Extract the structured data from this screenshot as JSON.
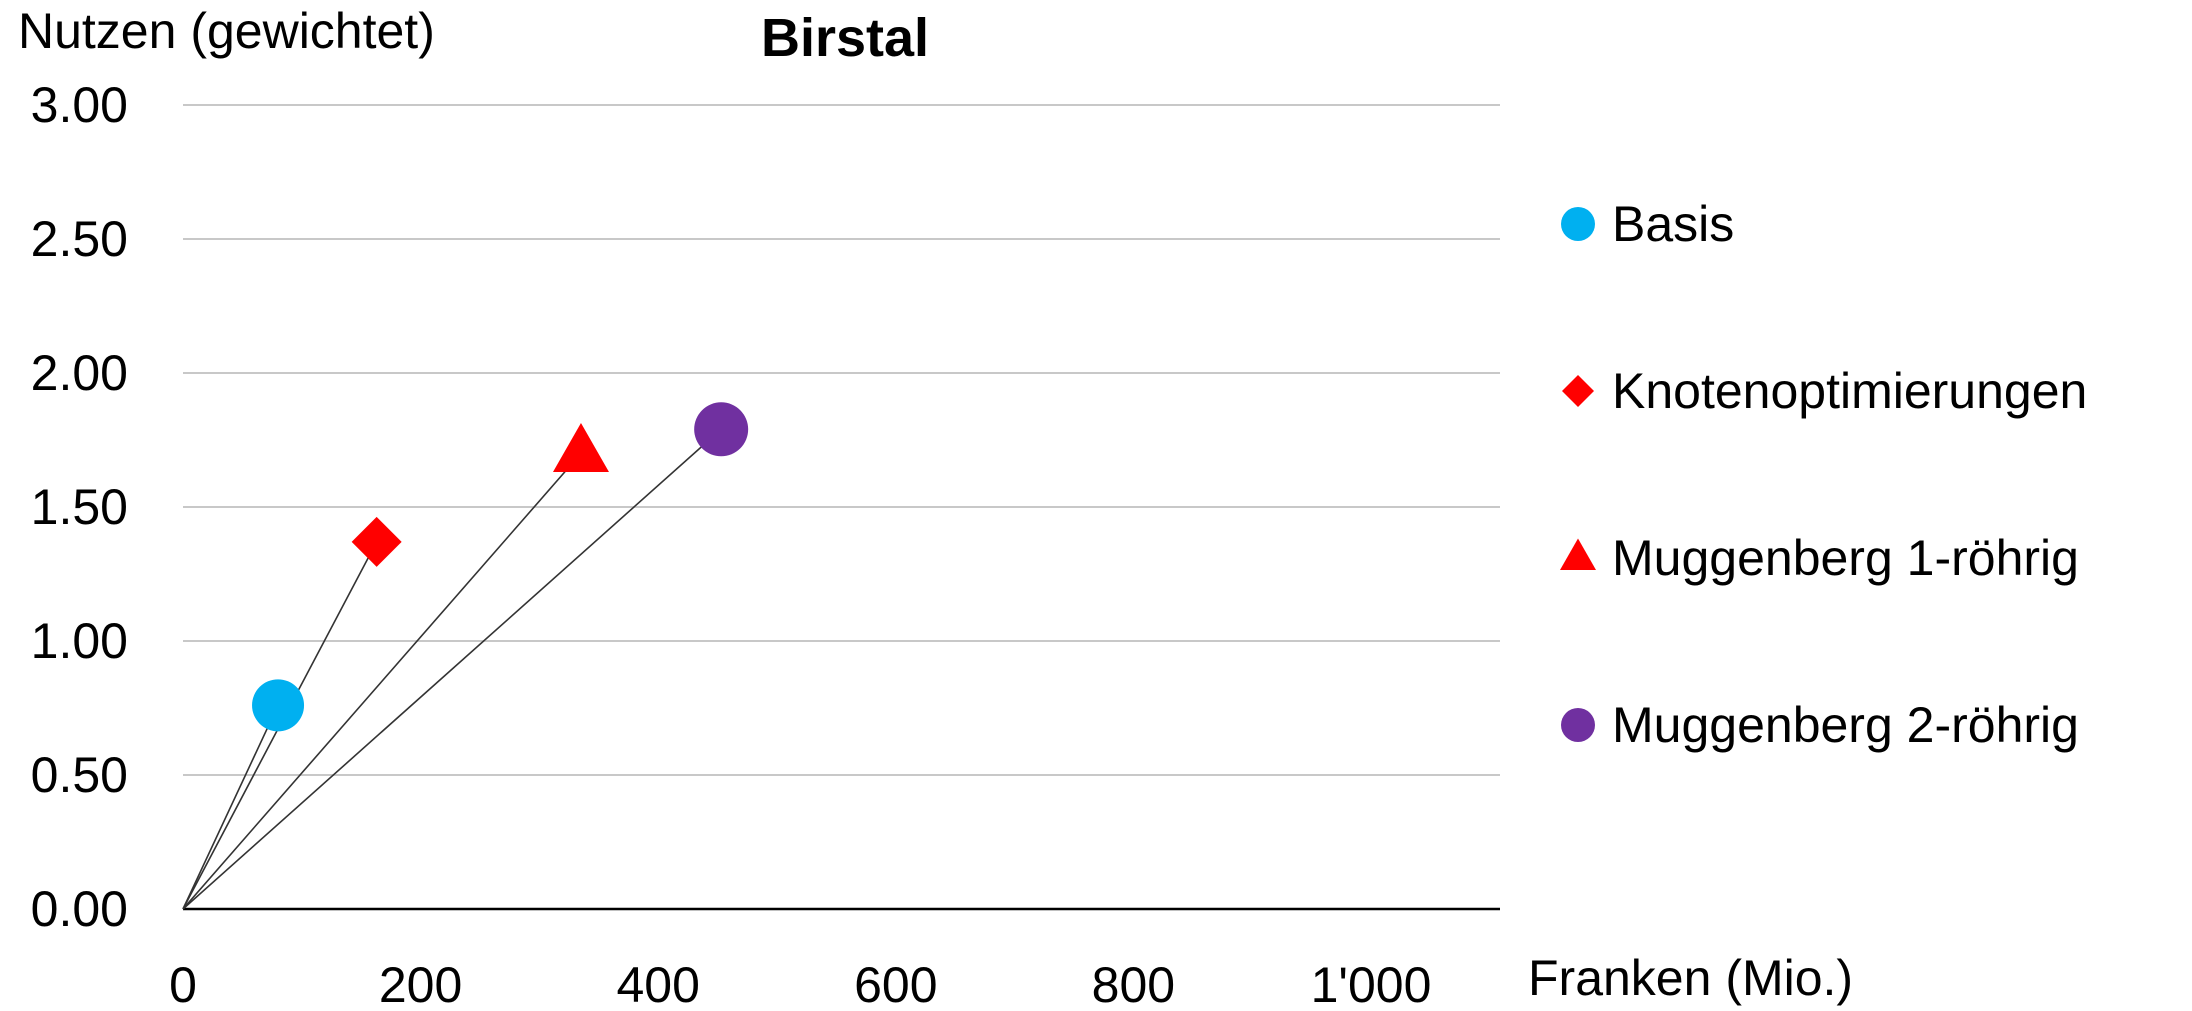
{
  "chart_data": {
    "type": "scatter",
    "title": "Birstal",
    "xlabel": "Franken (Mio.)",
    "ylabel": "Nutzen (gewichtet)",
    "xlim": [
      0,
      1100
    ],
    "ylim": [
      0,
      3
    ],
    "x_ticks": [
      {
        "value": 0,
        "label": "0"
      },
      {
        "value": 200,
        "label": "200"
      },
      {
        "value": 400,
        "label": "400"
      },
      {
        "value": 600,
        "label": "600"
      },
      {
        "value": 800,
        "label": "800"
      },
      {
        "value": 1000,
        "label": "1'000"
      }
    ],
    "y_ticks": [
      {
        "value": 0,
        "label": "0.00"
      },
      {
        "value": 0.5,
        "label": "0.50"
      },
      {
        "value": 1,
        "label": "1.00"
      },
      {
        "value": 1.5,
        "label": "1.50"
      },
      {
        "value": 2,
        "label": "2.00"
      },
      {
        "value": 2.5,
        "label": "2.50"
      },
      {
        "value": 3,
        "label": "3.00"
      }
    ],
    "grid": "horizontal",
    "legend_position": "right",
    "rays_from_origin": true,
    "series": [
      {
        "name": "Basis",
        "x": 80,
        "y": 0.76,
        "marker": "circle",
        "color": "#00B0F0"
      },
      {
        "name": "Knotenoptimierungen",
        "x": 163,
        "y": 1.37,
        "marker": "diamond",
        "color": "#FF0000"
      },
      {
        "name": "Muggenberg 1-röhrig",
        "x": 335,
        "y": 1.7,
        "marker": "triangle",
        "color": "#FF0000"
      },
      {
        "name": "Muggenberg 2-röhrig",
        "x": 453,
        "y": 1.79,
        "marker": "circle",
        "color": "#7030A0"
      }
    ]
  }
}
